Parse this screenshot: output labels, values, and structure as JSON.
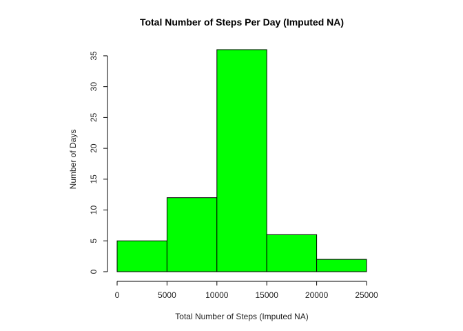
{
  "chart_data": {
    "type": "bar",
    "title": "Total Number of Steps Per Day (Imputed NA)",
    "xlabel": "Total Number of Steps (Imputed NA)",
    "ylabel": "Number of Days",
    "bins": [
      {
        "start": 0,
        "end": 5000,
        "count": 5
      },
      {
        "start": 5000,
        "end": 10000,
        "count": 12
      },
      {
        "start": 10000,
        "end": 15000,
        "count": 36
      },
      {
        "start": 15000,
        "end": 20000,
        "count": 6
      },
      {
        "start": 20000,
        "end": 25000,
        "count": 2
      }
    ],
    "xlim": [
      0,
      25000
    ],
    "ylim": [
      0,
      36
    ],
    "x_ticks": [
      "0",
      "5000",
      "10000",
      "15000",
      "20000",
      "25000"
    ],
    "y_ticks": [
      "0",
      "5",
      "10",
      "15",
      "20",
      "25",
      "30",
      "35"
    ],
    "bar_color": "#00ff00",
    "grid": false
  }
}
